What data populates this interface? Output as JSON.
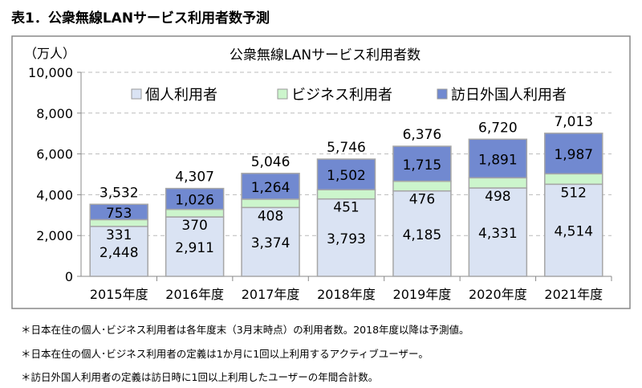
{
  "heading": "表1．公衆無線LANサービス利用者数予測",
  "notes": [
    "＊日本在住の個人･ビジネス利用者は各年度末（3月末時点）の利用者数。2018年度以降は予測値。",
    "＊日本在住の個人･ビジネス利用者の定義は1か月に1回以上利用するアクティブユーザー。",
    "＊訪日外国人利用者の定義は訪日時に1回以上利用したユーザーの年間合計数。"
  ],
  "chart_data": {
    "type": "bar",
    "stacked": true,
    "title": "公衆無線LANサービス利用者数",
    "ylabel": "（万人）",
    "xlabel": "",
    "ylim": [
      0,
      10000
    ],
    "yticks": [
      "0",
      "2,000",
      "4,000",
      "6,000",
      "8,000",
      "10,000"
    ],
    "grid": true,
    "legend": "top",
    "categories": [
      "2015年度",
      "2016年度",
      "2017年度",
      "2018年度",
      "2019年度",
      "2020年度",
      "2021年度"
    ],
    "series": [
      {
        "name": "個人利用者",
        "color": "#dae3f3",
        "values": [
          2448,
          2911,
          3374,
          3793,
          4185,
          4331,
          4514
        ],
        "labels": [
          "2,448",
          "2,911",
          "3,374",
          "3,793",
          "4,185",
          "4,331",
          "4,514"
        ]
      },
      {
        "name": "ビジネス利用者",
        "color": "#ccf5cc",
        "values": [
          331,
          370,
          408,
          451,
          476,
          498,
          512
        ],
        "labels": [
          "331",
          "370",
          "408",
          "451",
          "476",
          "498",
          "512"
        ]
      },
      {
        "name": "訪日外国人利用者",
        "color": "#7189d0",
        "values": [
          753,
          1026,
          1264,
          1502,
          1715,
          1891,
          1987
        ],
        "labels": [
          "753",
          "1,026",
          "1,264",
          "1,502",
          "1,715",
          "1,891",
          "1,987"
        ]
      }
    ],
    "totals": [
      "3,532",
      "4,307",
      "5,046",
      "5,746",
      "6,376",
      "6,720",
      "7,013"
    ]
  }
}
